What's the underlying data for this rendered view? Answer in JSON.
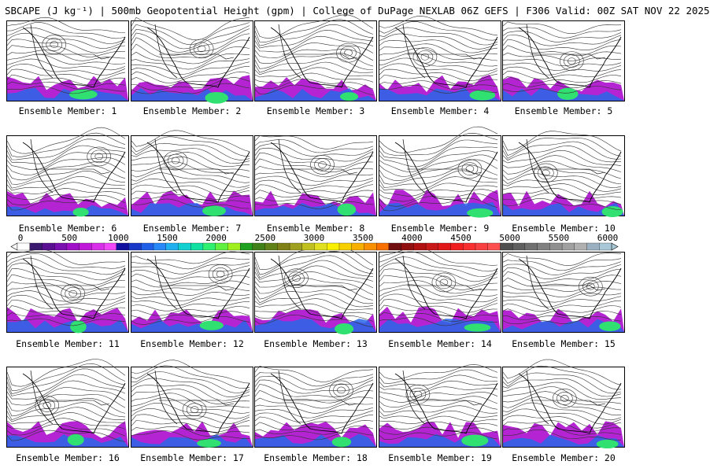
{
  "title": "SBCAPE (J kg⁻¹) | 500mb Geopotential Height (gpm) | College of DuPage NEXLAB 06Z GEFS | F306 Valid: 00Z SAT NOV 22 2025",
  "colorbar": {
    "ticks": [
      "0",
      "500",
      "1000",
      "1500",
      "2000",
      "2500",
      "3000",
      "3500",
      "4000",
      "4500",
      "5000",
      "5500",
      "6000"
    ],
    "colors": [
      "#ffffff",
      "#3a1a6e",
      "#5a1090",
      "#7a10b0",
      "#a010c8",
      "#c018d8",
      "#d830e8",
      "#f048f8",
      "#1010a0",
      "#1838c8",
      "#2060e8",
      "#2888f8",
      "#20b0f0",
      "#10d0d0",
      "#10e0a0",
      "#30f070",
      "#60f040",
      "#a0f020",
      "#20a020",
      "#408018",
      "#608018",
      "#808018",
      "#a0a020",
      "#c0c020",
      "#e0e020",
      "#f8f000",
      "#f8d000",
      "#f8b000",
      "#f89000",
      "#f87000",
      "#701010",
      "#901010",
      "#b01010",
      "#c81818",
      "#e01818",
      "#f02020",
      "#f83030",
      "#f84040",
      "#ff5050",
      "#505050",
      "#606060",
      "#707070",
      "#808080",
      "#909090",
      "#a0a0a0",
      "#b0b0b0",
      "#9ab0c0",
      "#a8c8d8"
    ]
  },
  "members": [
    {
      "label": "Ensemble Member: 1"
    },
    {
      "label": "Ensemble Member: 2"
    },
    {
      "label": "Ensemble Member: 3"
    },
    {
      "label": "Ensemble Member: 4"
    },
    {
      "label": "Ensemble Member: 5"
    },
    {
      "label": "Ensemble Member: 6"
    },
    {
      "label": "Ensemble Member: 7"
    },
    {
      "label": "Ensemble Member: 8"
    },
    {
      "label": "Ensemble Member: 9"
    },
    {
      "label": "Ensemble Member: 10"
    },
    {
      "label": "Ensemble Member: 11"
    },
    {
      "label": "Ensemble Member: 12"
    },
    {
      "label": "Ensemble Member: 13"
    },
    {
      "label": "Ensemble Member: 14"
    },
    {
      "label": "Ensemble Member: 15"
    },
    {
      "label": "Ensemble Member: 16"
    },
    {
      "label": "Ensemble Member: 17"
    },
    {
      "label": "Ensemble Member: 18"
    },
    {
      "label": "Ensemble Member: 19"
    },
    {
      "label": "Ensemble Member: 20"
    }
  ]
}
